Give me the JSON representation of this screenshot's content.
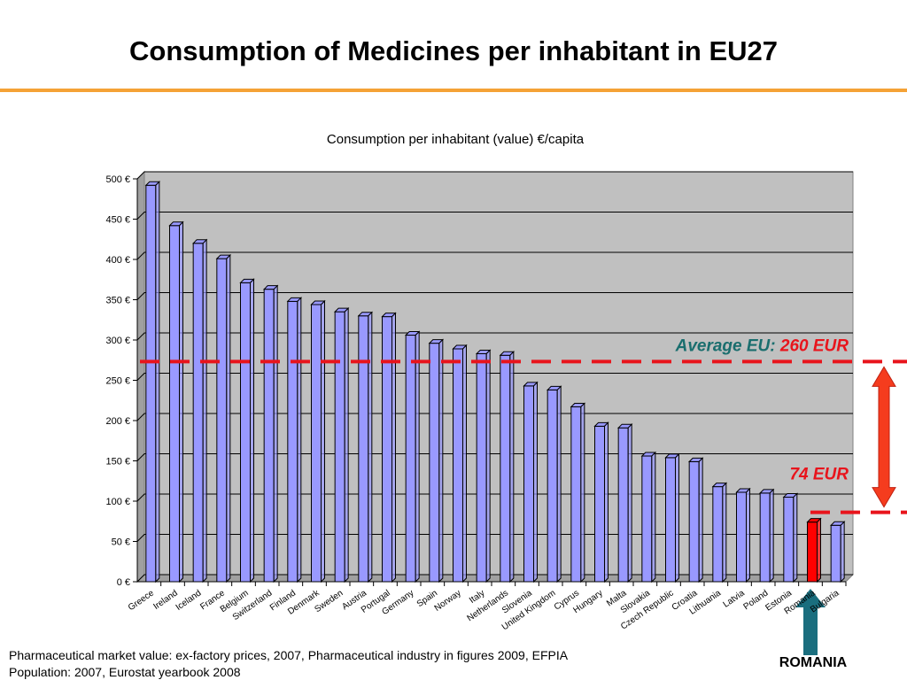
{
  "title": "Consumption of Medicines per inhabitant in EU27",
  "chart_data": {
    "type": "bar",
    "title": "Consumption per inhabitant (value) €/capita",
    "categories": [
      "Greece",
      "Ireland",
      "Iceland",
      "France",
      "Belgium",
      "Switzerland",
      "Finland",
      "Denmark",
      "Sweden",
      "Austria",
      "Portugal",
      "Germany",
      "Spain",
      "Norway",
      "Italy",
      "Netherlands",
      "Slovenia",
      "United Kingdom",
      "Cyprus",
      "Hungary",
      "Malta",
      "Slovakia",
      "Czech Republic",
      "Croatia",
      "Lithuania",
      "Latvia",
      "Poland",
      "Estonia",
      "Romania",
      "Bulgaria"
    ],
    "values": [
      492,
      442,
      420,
      401,
      371,
      363,
      348,
      344,
      335,
      330,
      329,
      306,
      296,
      289,
      283,
      281,
      243,
      238,
      217,
      193,
      191,
      156,
      154,
      149,
      118,
      111,
      110,
      105,
      74,
      70
    ],
    "color": "#9999ff",
    "highlight_color": "#ff0000",
    "highlight": "Romania",
    "ylim": [
      0,
      500
    ],
    "yticks": [
      {
        "value": 0,
        "label": "0 €"
      },
      {
        "value": 50,
        "label": "50 €"
      },
      {
        "value": 100,
        "label": "100 €"
      },
      {
        "value": 150,
        "label": "150 €"
      },
      {
        "value": 200,
        "label": "200 €"
      },
      {
        "value": 250,
        "label": "250 €"
      },
      {
        "value": 300,
        "label": "300 €"
      },
      {
        "value": 350,
        "label": "350 €"
      },
      {
        "value": 400,
        "label": "400 €"
      },
      {
        "value": 450,
        "label": "450 €"
      },
      {
        "value": 500,
        "label": "500 €"
      }
    ],
    "grid": true,
    "average": {
      "label": "Average EU:",
      "value_label": "260 EUR",
      "value": 260
    },
    "romania": {
      "value_label": "74 EUR",
      "value": 74
    }
  },
  "footnotes": [
    "Pharmaceutical market value: ex-factory prices, 2007, Pharmaceutical industry in figures 2009, EFPIA",
    "Population: 2007, Eurostat yearbook 2008"
  ],
  "pointer_label": "ROMANIA"
}
